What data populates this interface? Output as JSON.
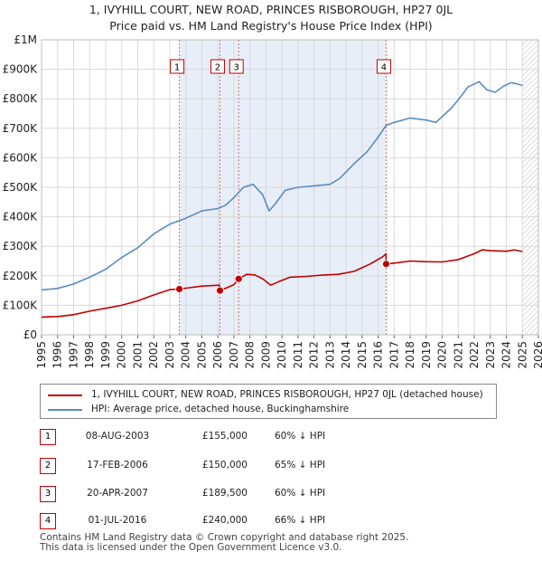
{
  "chart_data": {
    "type": "line",
    "title": "1, IVYHILL COURT, NEW ROAD, PRINCES RISBOROUGH, HP27 0JL",
    "subtitle": "Price paid vs. HM Land Registry's House Price Index (HPI)",
    "xlim": [
      1995,
      2026
    ],
    "ylim": [
      0,
      1000000
    ],
    "x_ticks": [
      1995,
      1996,
      1997,
      1998,
      1999,
      2000,
      2001,
      2002,
      2003,
      2004,
      2005,
      2006,
      2007,
      2008,
      2009,
      2010,
      2011,
      2012,
      2013,
      2014,
      2015,
      2016,
      2017,
      2018,
      2019,
      2020,
      2021,
      2022,
      2023,
      2024,
      2025,
      2026
    ],
    "y_ticks": [
      {
        "value": 0,
        "label": "£0"
      },
      {
        "value": 100000,
        "label": "£100K"
      },
      {
        "value": 200000,
        "label": "£200K"
      },
      {
        "value": 300000,
        "label": "£300K"
      },
      {
        "value": 400000,
        "label": "£400K"
      },
      {
        "value": 500000,
        "label": "£500K"
      },
      {
        "value": 600000,
        "label": "£600K"
      },
      {
        "value": 700000,
        "label": "£700K"
      },
      {
        "value": 800000,
        "label": "£800K"
      },
      {
        "value": 900000,
        "label": "£900K"
      },
      {
        "value": 1000000,
        "label": "£1M"
      }
    ],
    "grid": true,
    "shaded_range": [
      2003.6,
      2016.5
    ],
    "future_hatch_from": 2025.0,
    "series": [
      {
        "name": "1, IVYHILL COURT, NEW ROAD, PRINCES RISBOROUGH, HP27 0JL (detached house)",
        "color": "#c00000",
        "points": [
          [
            1995,
            60000
          ],
          [
            1996,
            62000
          ],
          [
            1997,
            68000
          ],
          [
            1998,
            80000
          ],
          [
            1999,
            90000
          ],
          [
            2000,
            100000
          ],
          [
            2001,
            115000
          ],
          [
            2002,
            135000
          ],
          [
            2003,
            153000
          ],
          [
            2003.6,
            155000
          ],
          [
            2004,
            158000
          ],
          [
            2005,
            165000
          ],
          [
            2006.1,
            168000
          ],
          [
            2006.13,
            150000
          ],
          [
            2006.5,
            158000
          ],
          [
            2007.0,
            170000
          ],
          [
            2007.3,
            189500
          ],
          [
            2007.8,
            205000
          ],
          [
            2008.3,
            203000
          ],
          [
            2008.8,
            190000
          ],
          [
            2009.3,
            168000
          ],
          [
            2009.8,
            180000
          ],
          [
            2010.5,
            195000
          ],
          [
            2011.5,
            198000
          ],
          [
            2012.5,
            202000
          ],
          [
            2013.5,
            205000
          ],
          [
            2014.5,
            215000
          ],
          [
            2015.5,
            240000
          ],
          [
            2016.3,
            265000
          ],
          [
            2016.49,
            275000
          ],
          [
            2016.5,
            240000
          ],
          [
            2017,
            243000
          ],
          [
            2018,
            250000
          ],
          [
            2019,
            248000
          ],
          [
            2020,
            247000
          ],
          [
            2021,
            255000
          ],
          [
            2022,
            275000
          ],
          [
            2022.5,
            288000
          ],
          [
            2023,
            285000
          ],
          [
            2024,
            283000
          ],
          [
            2024.5,
            288000
          ],
          [
            2025,
            282000
          ]
        ]
      },
      {
        "name": "HPI: Average price, detached house, Buckinghamshire",
        "color": "#5b8bc0",
        "points": [
          [
            1995,
            152000
          ],
          [
            1996,
            157000
          ],
          [
            1997,
            172000
          ],
          [
            1998,
            195000
          ],
          [
            1999,
            222000
          ],
          [
            2000,
            262000
          ],
          [
            2001,
            295000
          ],
          [
            2002,
            342000
          ],
          [
            2003,
            375000
          ],
          [
            2004,
            395000
          ],
          [
            2005,
            420000
          ],
          [
            2006,
            428000
          ],
          [
            2006.5,
            440000
          ],
          [
            2007,
            465000
          ],
          [
            2007.6,
            500000
          ],
          [
            2008.2,
            510000
          ],
          [
            2008.8,
            475000
          ],
          [
            2009.2,
            420000
          ],
          [
            2009.6,
            445000
          ],
          [
            2010.2,
            490000
          ],
          [
            2011,
            500000
          ],
          [
            2012,
            505000
          ],
          [
            2013,
            510000
          ],
          [
            2013.6,
            530000
          ],
          [
            2014.5,
            580000
          ],
          [
            2015.3,
            620000
          ],
          [
            2016,
            670000
          ],
          [
            2016.5,
            710000
          ],
          [
            2017,
            720000
          ],
          [
            2018,
            735000
          ],
          [
            2019,
            728000
          ],
          [
            2019.6,
            720000
          ],
          [
            2020,
            740000
          ],
          [
            2020.6,
            770000
          ],
          [
            2021.2,
            810000
          ],
          [
            2021.6,
            840000
          ],
          [
            2022.3,
            858000
          ],
          [
            2022.8,
            830000
          ],
          [
            2023.3,
            822000
          ],
          [
            2023.8,
            842000
          ],
          [
            2024.3,
            855000
          ],
          [
            2024.7,
            850000
          ],
          [
            2025,
            845000
          ]
        ]
      }
    ],
    "markers": [
      {
        "label": "1",
        "x": 2003.6,
        "y": 155000
      },
      {
        "label": "2",
        "x": 2006.13,
        "y": 150000
      },
      {
        "label": "3",
        "x": 2007.3,
        "y": 189500
      },
      {
        "label": "4",
        "x": 2016.5,
        "y": 240000
      }
    ]
  },
  "legend": [
    {
      "label": "1, IVYHILL COURT, NEW ROAD, PRINCES RISBOROUGH, HP27 0JL (detached house)",
      "color": "#c00000"
    },
    {
      "label": "HPI: Average price, detached house, Buckinghamshire",
      "color": "#5b8bc0"
    }
  ],
  "transactions": [
    {
      "num": "1",
      "date": "08-AUG-2003",
      "price": "£155,000",
      "hpi": "60% ↓ HPI"
    },
    {
      "num": "2",
      "date": "17-FEB-2006",
      "price": "£150,000",
      "hpi": "65% ↓ HPI"
    },
    {
      "num": "3",
      "date": "20-APR-2007",
      "price": "£189,500",
      "hpi": "60% ↓ HPI"
    },
    {
      "num": "4",
      "date": "01-JUL-2016",
      "price": "£240,000",
      "hpi": "66% ↓ HPI"
    }
  ],
  "footer": {
    "line1": "Contains HM Land Registry data © Crown copyright and database right 2025.",
    "line2": "This data is licensed under the Open Government Licence v3.0."
  }
}
